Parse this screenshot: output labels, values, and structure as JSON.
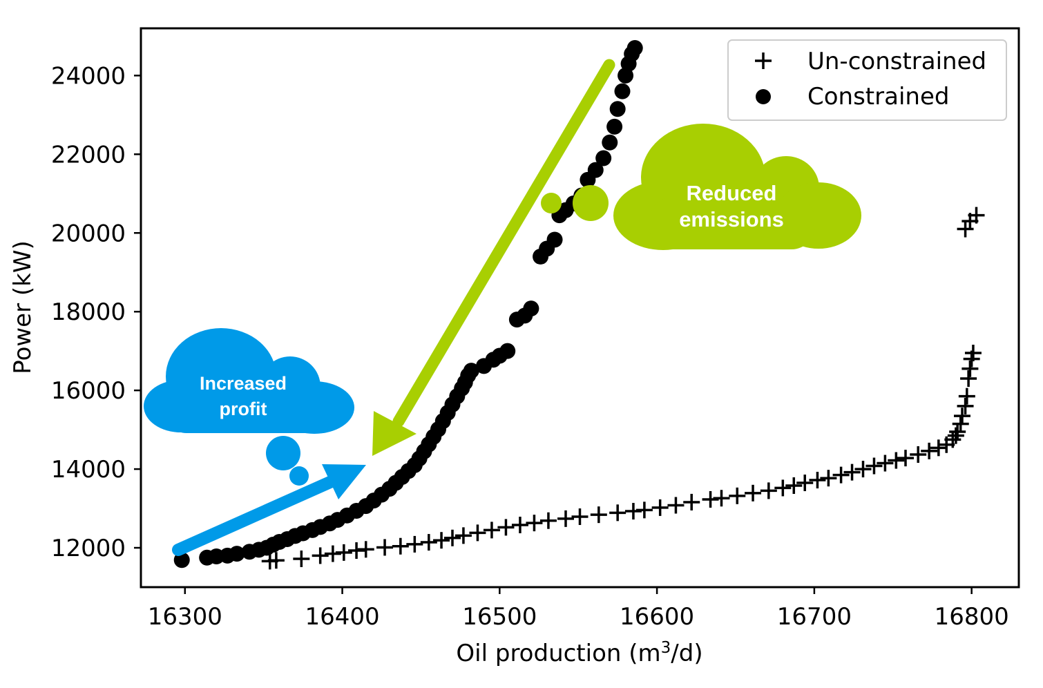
{
  "chart_data": {
    "type": "scatter",
    "title": "",
    "xlabel_prefix": "Oil production (m",
    "xlabel_sup": "3",
    "xlabel_suffix": "/d)",
    "ylabel": "Power (kW)",
    "xlim": [
      16272,
      16830
    ],
    "ylim": [
      11000,
      25200
    ],
    "x_ticks": [
      16300,
      16400,
      16500,
      16600,
      16700,
      16800
    ],
    "y_ticks": [
      12000,
      14000,
      16000,
      18000,
      20000,
      22000,
      24000
    ],
    "grid": false,
    "legend_position": "top-right",
    "series": [
      {
        "name": "Un-constrained",
        "marker": "plus",
        "color": "#000000",
        "points": [
          [
            16354,
            11660
          ],
          [
            16358,
            11680
          ],
          [
            16374,
            11720
          ],
          [
            16386,
            11800
          ],
          [
            16394,
            11850
          ],
          [
            16401,
            11880
          ],
          [
            16409,
            11930
          ],
          [
            16415,
            11960
          ],
          [
            16427,
            12010
          ],
          [
            16437,
            12040
          ],
          [
            16446,
            12090
          ],
          [
            16455,
            12140
          ],
          [
            16463,
            12190
          ],
          [
            16470,
            12250
          ],
          [
            16477,
            12310
          ],
          [
            16486,
            12380
          ],
          [
            16495,
            12450
          ],
          [
            16504,
            12520
          ],
          [
            16513,
            12580
          ],
          [
            16522,
            12630
          ],
          [
            16531,
            12690
          ],
          [
            16542,
            12740
          ],
          [
            16551,
            12790
          ],
          [
            16563,
            12840
          ],
          [
            16575,
            12890
          ],
          [
            16585,
            12930
          ],
          [
            16592,
            12960
          ],
          [
            16602,
            13020
          ],
          [
            16612,
            13080
          ],
          [
            16622,
            13160
          ],
          [
            16634,
            13230
          ],
          [
            16641,
            13260
          ],
          [
            16651,
            13320
          ],
          [
            16661,
            13390
          ],
          [
            16671,
            13450
          ],
          [
            16680,
            13520
          ],
          [
            16687,
            13580
          ],
          [
            16694,
            13650
          ],
          [
            16702,
            13720
          ],
          [
            16709,
            13770
          ],
          [
            16717,
            13850
          ],
          [
            16724,
            13920
          ],
          [
            16731,
            14000
          ],
          [
            16738,
            14080
          ],
          [
            16745,
            14150
          ],
          [
            16752,
            14220
          ],
          [
            16758,
            14280
          ],
          [
            16766,
            14370
          ],
          [
            16773,
            14460
          ],
          [
            16779,
            14540
          ],
          [
            16784,
            14620
          ],
          [
            16788,
            14750
          ],
          [
            16790,
            14850
          ],
          [
            16791,
            14950
          ],
          [
            16793,
            15150
          ],
          [
            16794,
            15350
          ],
          [
            16796,
            15600
          ],
          [
            16797,
            15850
          ],
          [
            16798,
            16300
          ],
          [
            16799,
            16550
          ],
          [
            16800,
            16800
          ],
          [
            16801,
            16950
          ],
          [
            16796,
            20100
          ],
          [
            16799,
            20300
          ],
          [
            16803,
            20450
          ]
        ]
      },
      {
        "name": "Constrained",
        "marker": "circle",
        "color": "#000000",
        "points": [
          [
            16298,
            11690
          ],
          [
            16314,
            11750
          ],
          [
            16320,
            11780
          ],
          [
            16327,
            11800
          ],
          [
            16333,
            11850
          ],
          [
            16341,
            11900
          ],
          [
            16347,
            11950
          ],
          [
            16352,
            12000
          ],
          [
            16356,
            12080
          ],
          [
            16360,
            12150
          ],
          [
            16365,
            12220
          ],
          [
            16370,
            12300
          ],
          [
            16375,
            12370
          ],
          [
            16381,
            12450
          ],
          [
            16386,
            12530
          ],
          [
            16392,
            12620
          ],
          [
            16397,
            12710
          ],
          [
            16403,
            12820
          ],
          [
            16409,
            12940
          ],
          [
            16415,
            13060
          ],
          [
            16420,
            13200
          ],
          [
            16425,
            13350
          ],
          [
            16430,
            13500
          ],
          [
            16434,
            13650
          ],
          [
            16438,
            13800
          ],
          [
            16442,
            13950
          ],
          [
            16446,
            14100
          ],
          [
            16449,
            14270
          ],
          [
            16452,
            14450
          ],
          [
            16455,
            14630
          ],
          [
            16458,
            14820
          ],
          [
            16461,
            15010
          ],
          [
            16464,
            15220
          ],
          [
            16467,
            15430
          ],
          [
            16470,
            15640
          ],
          [
            16473,
            15850
          ],
          [
            16476,
            16050
          ],
          [
            16478,
            16200
          ],
          [
            16480,
            16380
          ],
          [
            16482,
            16500
          ],
          [
            16490,
            16620
          ],
          [
            16496,
            16780
          ],
          [
            16500,
            16880
          ],
          [
            16505,
            17000
          ],
          [
            16511,
            17800
          ],
          [
            16516,
            17900
          ],
          [
            16520,
            18080
          ],
          [
            16526,
            19400
          ],
          [
            16530,
            19600
          ],
          [
            16535,
            19830
          ],
          [
            16538,
            20450
          ],
          [
            16542,
            20580
          ],
          [
            16547,
            20750
          ],
          [
            16552,
            20950
          ],
          [
            16556,
            21350
          ],
          [
            16561,
            21600
          ],
          [
            16566,
            21900
          ],
          [
            16570,
            22300
          ],
          [
            16573,
            22700
          ],
          [
            16575,
            23150
          ],
          [
            16578,
            23600
          ],
          [
            16580,
            24000
          ],
          [
            16582,
            24300
          ],
          [
            16584,
            24550
          ],
          [
            16586,
            24700
          ]
        ]
      }
    ],
    "annotations": [
      {
        "text_lines": [
          "Reduced",
          "emissions"
        ],
        "color": "#a8cf02"
      },
      {
        "text_lines": [
          "Increased",
          "profit"
        ],
        "color": "#009ae8"
      }
    ]
  }
}
